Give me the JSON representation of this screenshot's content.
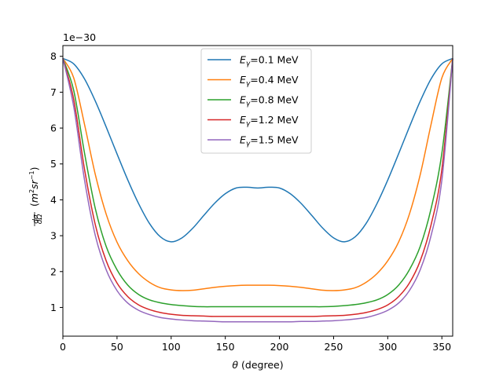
{
  "chart_data": {
    "type": "line",
    "title": "",
    "xlabel": "θ (degree)",
    "ylabel": "dσ/dΩ (m²sr⁻¹)",
    "offset_text": "1e−30",
    "xlim": [
      0,
      360
    ],
    "ylim": [
      0.2,
      8.3
    ],
    "xticks": [
      0,
      50,
      100,
      150,
      200,
      250,
      300,
      350
    ],
    "yticks": [
      1,
      2,
      3,
      4,
      5,
      6,
      7,
      8
    ],
    "grid": false,
    "legend_position": "top-center",
    "x": [
      0,
      10,
      20,
      30,
      40,
      50,
      60,
      70,
      80,
      90,
      100,
      110,
      120,
      130,
      140,
      150,
      160,
      170,
      180,
      190,
      200,
      210,
      220,
      230,
      240,
      250,
      260,
      270,
      280,
      290,
      300,
      310,
      320,
      330,
      340,
      350,
      360
    ],
    "series": [
      {
        "name": "Eγ=0.1 MeV",
        "color": "#1f77b4",
        "values": [
          7.94,
          7.79,
          7.37,
          6.75,
          6.03,
          5.28,
          4.55,
          3.89,
          3.34,
          2.97,
          2.83,
          2.94,
          3.21,
          3.56,
          3.9,
          4.17,
          4.33,
          4.35,
          4.33,
          4.35,
          4.33,
          4.17,
          3.9,
          3.56,
          3.21,
          2.94,
          2.83,
          2.97,
          3.34,
          3.89,
          4.55,
          5.28,
          6.03,
          6.75,
          7.37,
          7.79,
          7.94
        ]
      },
      {
        "name": "Eγ=0.4 MeV",
        "color": "#ff7f0e",
        "values": [
          7.94,
          7.4,
          6.1,
          4.7,
          3.6,
          2.82,
          2.3,
          1.94,
          1.7,
          1.55,
          1.49,
          1.47,
          1.48,
          1.52,
          1.56,
          1.59,
          1.61,
          1.62,
          1.62,
          1.62,
          1.61,
          1.59,
          1.56,
          1.52,
          1.48,
          1.47,
          1.49,
          1.55,
          1.7,
          1.94,
          2.3,
          2.82,
          3.6,
          4.7,
          6.1,
          7.4,
          7.94
        ]
      },
      {
        "name": "Eγ=0.8 MeV",
        "color": "#2ca02c",
        "values": [
          7.94,
          7.05,
          5.3,
          3.75,
          2.7,
          2.05,
          1.62,
          1.36,
          1.21,
          1.13,
          1.08,
          1.05,
          1.03,
          1.02,
          1.02,
          1.02,
          1.02,
          1.02,
          1.02,
          1.02,
          1.02,
          1.02,
          1.02,
          1.02,
          1.02,
          1.03,
          1.05,
          1.08,
          1.13,
          1.21,
          1.36,
          1.62,
          2.05,
          2.7,
          3.75,
          5.3,
          7.94
        ]
      },
      {
        "name": "Eγ=1.2 MeV",
        "color": "#d62728",
        "values": [
          7.94,
          6.8,
          4.85,
          3.3,
          2.3,
          1.68,
          1.3,
          1.07,
          0.94,
          0.86,
          0.81,
          0.78,
          0.77,
          0.76,
          0.75,
          0.75,
          0.75,
          0.75,
          0.75,
          0.75,
          0.75,
          0.75,
          0.75,
          0.75,
          0.76,
          0.77,
          0.78,
          0.81,
          0.86,
          0.94,
          1.07,
          1.3,
          1.68,
          2.3,
          3.3,
          4.85,
          7.94
        ]
      },
      {
        "name": "Eγ=1.5 MeV",
        "color": "#9467bd",
        "values": [
          7.94,
          6.6,
          4.55,
          3.0,
          2.05,
          1.47,
          1.12,
          0.92,
          0.8,
          0.72,
          0.68,
          0.65,
          0.63,
          0.62,
          0.61,
          0.6,
          0.6,
          0.6,
          0.6,
          0.6,
          0.6,
          0.6,
          0.61,
          0.61,
          0.62,
          0.63,
          0.65,
          0.68,
          0.72,
          0.8,
          0.92,
          1.12,
          1.47,
          2.05,
          3.0,
          4.55,
          7.94
        ]
      }
    ]
  }
}
